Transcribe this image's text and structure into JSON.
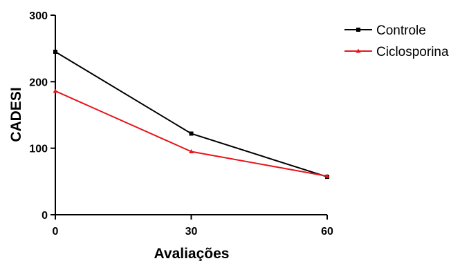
{
  "chart_data": {
    "type": "line",
    "x": [
      0,
      30,
      60
    ],
    "xticks": [
      "0",
      "30",
      "60"
    ],
    "yticks": [
      "0",
      "100",
      "200",
      "300"
    ],
    "xlabel": "Avaliações",
    "ylabel": "CADESI",
    "ylim": [
      0,
      300
    ],
    "grid": false,
    "legend_position": "top-right",
    "series": [
      {
        "name": "Controle",
        "values": [
          245,
          122,
          57
        ],
        "color": "#000000",
        "marker": "square"
      },
      {
        "name": "Ciclosporina",
        "values": [
          186,
          95,
          58
        ],
        "color": "#e8141b",
        "marker": "triangle"
      }
    ]
  }
}
